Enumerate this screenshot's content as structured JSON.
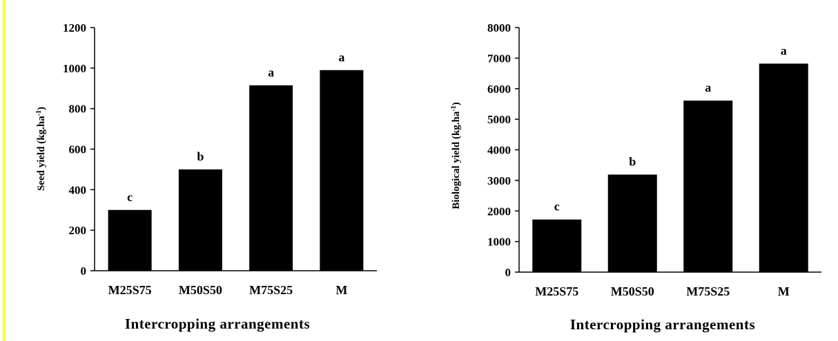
{
  "colors": {
    "bar": "#000000",
    "accent_line": "#ffff00",
    "background": "#ffffff"
  },
  "chart_data": [
    {
      "type": "bar",
      "categories": [
        "M25S75",
        "M50S50",
        "M75S25",
        "M"
      ],
      "values": [
        300,
        500,
        915,
        990
      ],
      "significance": [
        "c",
        "b",
        "a",
        "a"
      ],
      "xlabel": "Intercropping arrangements",
      "ylabel": {
        "text": "Seed yield (kg.ha",
        "sup": "-1",
        "after": ")"
      },
      "ylim": [
        0,
        1200
      ],
      "yticks": [
        0,
        200,
        400,
        600,
        800,
        1000,
        1200
      ],
      "grid": false,
      "legend": "none"
    },
    {
      "type": "bar",
      "categories": [
        "M25S75",
        "M50S50",
        "M75S25",
        "M"
      ],
      "values": [
        1720,
        3190,
        5610,
        6820
      ],
      "significance": [
        "c",
        "b",
        "a",
        "a"
      ],
      "xlabel": "Intercropping arrangements",
      "ylabel": {
        "text": "Biological yield (kg.ha",
        "sup": "-1",
        "after": ")"
      },
      "ylim": [
        0,
        8000
      ],
      "yticks": [
        0,
        1000,
        2000,
        3000,
        4000,
        5000,
        6000,
        7000,
        8000
      ],
      "grid": false,
      "legend": "none"
    }
  ]
}
